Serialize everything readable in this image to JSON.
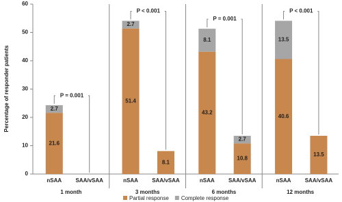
{
  "chart_data": {
    "type": "stacked-bar",
    "y_label": "Percentage of responder patients",
    "groups": [
      "1 month",
      "3 months",
      "6 months",
      "12 months"
    ],
    "categories": [
      "nSAA",
      "SAA/vSAA",
      "nSAA",
      "SAA/vSAA",
      "nSAA",
      "SAA/vSAA",
      "nSAA",
      "SAA/vSAA"
    ],
    "series": [
      {
        "name": "Partial response",
        "color": "#c8874c",
        "values": [
          21.6,
          null,
          51.4,
          8.1,
          43.2,
          10.8,
          40.6,
          13.5
        ]
      },
      {
        "name": "Complete response",
        "color": "#a6a6a6",
        "values": [
          2.7,
          null,
          2.7,
          null,
          8.1,
          2.7,
          13.5,
          null
        ]
      }
    ],
    "annotations": [
      "P = 0.001",
      "P < 0.001",
      "P = 0.001",
      "P < 0.001"
    ],
    "ylim": [
      0,
      60
    ],
    "yticks": [
      0,
      10,
      20,
      30,
      40,
      50,
      60
    ],
    "grid": false,
    "legend": "bottom"
  }
}
